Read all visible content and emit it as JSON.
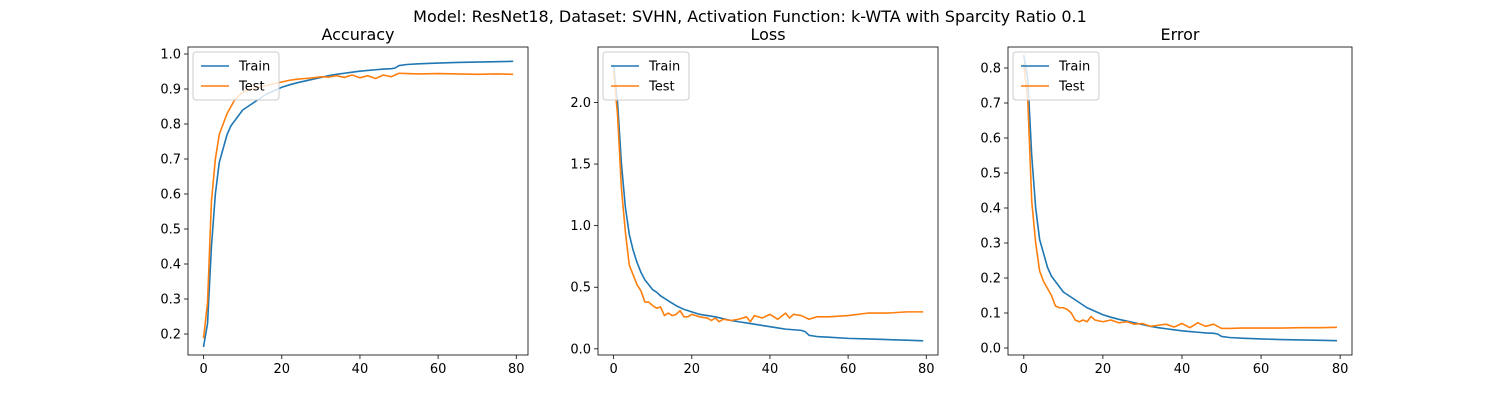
{
  "figure": {
    "suptitle": "Model: ResNet18, Dataset: SVHN, Activation Function: k-WTA with Sparcity Ratio 0.1"
  },
  "colors": {
    "train": "#1f77b4",
    "test": "#ff7f0e"
  },
  "chart_data": [
    {
      "type": "line",
      "title": "Accuracy",
      "xlabel": "",
      "ylabel": "",
      "xlim": [
        -4,
        83
      ],
      "ylim": [
        0.14,
        1.02
      ],
      "xticks": [
        0,
        20,
        40,
        60,
        80
      ],
      "yticks": [
        0.2,
        0.3,
        0.4,
        0.5,
        0.6,
        0.7,
        0.8,
        0.9,
        1.0
      ],
      "ytick_labels": [
        "0.2",
        "0.3",
        "0.4",
        "0.5",
        "0.6",
        "0.7",
        "0.8",
        "0.9",
        "1.0"
      ],
      "legend": "upper left",
      "series": [
        {
          "name": "Train",
          "color": "#1f77b4",
          "x": [
            0,
            1,
            2,
            3,
            4,
            5,
            6,
            7,
            8,
            9,
            10,
            12,
            14,
            16,
            18,
            20,
            22,
            24,
            26,
            28,
            30,
            32,
            34,
            36,
            38,
            40,
            42,
            44,
            46,
            48,
            49,
            50,
            52,
            55,
            60,
            65,
            70,
            75,
            79
          ],
          "y": [
            0.165,
            0.23,
            0.45,
            0.6,
            0.69,
            0.73,
            0.77,
            0.795,
            0.81,
            0.825,
            0.84,
            0.855,
            0.87,
            0.885,
            0.895,
            0.905,
            0.912,
            0.918,
            0.923,
            0.928,
            0.933,
            0.938,
            0.942,
            0.945,
            0.948,
            0.951,
            0.953,
            0.955,
            0.957,
            0.958,
            0.96,
            0.967,
            0.97,
            0.972,
            0.974,
            0.976,
            0.977,
            0.978,
            0.979
          ]
        },
        {
          "name": "Test",
          "color": "#ff7f0e",
          "x": [
            0,
            1,
            2,
            3,
            4,
            5,
            6,
            7,
            8,
            9,
            10,
            12,
            14,
            16,
            18,
            20,
            22,
            24,
            26,
            28,
            30,
            32,
            34,
            36,
            38,
            40,
            42,
            44,
            46,
            48,
            50,
            52,
            55,
            60,
            65,
            70,
            75,
            79
          ],
          "y": [
            0.19,
            0.29,
            0.58,
            0.7,
            0.77,
            0.8,
            0.83,
            0.85,
            0.87,
            0.88,
            0.89,
            0.9,
            0.905,
            0.91,
            0.915,
            0.92,
            0.925,
            0.928,
            0.93,
            0.932,
            0.935,
            0.934,
            0.938,
            0.933,
            0.94,
            0.932,
            0.938,
            0.93,
            0.94,
            0.935,
            0.945,
            0.944,
            0.943,
            0.944,
            0.943,
            0.942,
            0.943,
            0.942
          ]
        }
      ]
    },
    {
      "type": "line",
      "title": "Loss",
      "xlabel": "",
      "ylabel": "",
      "xlim": [
        -4,
        83
      ],
      "ylim": [
        -0.05,
        2.45
      ],
      "xticks": [
        0,
        20,
        40,
        60,
        80
      ],
      "yticks": [
        0.0,
        0.5,
        1.0,
        1.5,
        2.0
      ],
      "ytick_labels": [
        "0.0",
        "0.5",
        "1.0",
        "1.5",
        "2.0"
      ],
      "legend": "upper left",
      "series": [
        {
          "name": "Train",
          "color": "#1f77b4",
          "x": [
            0,
            1,
            2,
            3,
            4,
            5,
            6,
            7,
            8,
            9,
            10,
            11,
            12,
            14,
            16,
            18,
            20,
            22,
            24,
            26,
            28,
            30,
            32,
            34,
            36,
            38,
            40,
            42,
            44,
            46,
            48,
            49,
            50,
            52,
            55,
            60,
            65,
            70,
            75,
            79
          ],
          "y": [
            2.3,
            2.0,
            1.5,
            1.15,
            0.93,
            0.8,
            0.7,
            0.62,
            0.56,
            0.52,
            0.48,
            0.46,
            0.43,
            0.39,
            0.35,
            0.32,
            0.3,
            0.28,
            0.27,
            0.26,
            0.245,
            0.23,
            0.22,
            0.21,
            0.2,
            0.19,
            0.18,
            0.17,
            0.16,
            0.155,
            0.15,
            0.14,
            0.11,
            0.1,
            0.095,
            0.085,
            0.08,
            0.075,
            0.07,
            0.065
          ]
        },
        {
          "name": "Test",
          "color": "#ff7f0e",
          "x": [
            0,
            1,
            2,
            3,
            4,
            5,
            6,
            7,
            8,
            9,
            10,
            11,
            12,
            13,
            14,
            15,
            16,
            17,
            18,
            19,
            20,
            22,
            24,
            25,
            26,
            27,
            28,
            30,
            32,
            34,
            35,
            36,
            38,
            40,
            42,
            44,
            45,
            46,
            48,
            50,
            52,
            55,
            60,
            65,
            70,
            75,
            79
          ],
          "y": [
            2.25,
            1.9,
            1.3,
            0.95,
            0.68,
            0.6,
            0.52,
            0.47,
            0.38,
            0.38,
            0.35,
            0.33,
            0.34,
            0.27,
            0.29,
            0.27,
            0.28,
            0.31,
            0.26,
            0.26,
            0.28,
            0.26,
            0.25,
            0.23,
            0.25,
            0.22,
            0.24,
            0.23,
            0.24,
            0.26,
            0.22,
            0.27,
            0.25,
            0.28,
            0.24,
            0.29,
            0.25,
            0.28,
            0.27,
            0.24,
            0.26,
            0.26,
            0.27,
            0.29,
            0.29,
            0.3,
            0.3
          ]
        }
      ]
    },
    {
      "type": "line",
      "title": "Error",
      "xlabel": "",
      "ylabel": "",
      "xlim": [
        -4,
        83
      ],
      "ylim": [
        -0.02,
        0.86
      ],
      "xticks": [
        0,
        20,
        40,
        60,
        80
      ],
      "yticks": [
        0.0,
        0.1,
        0.2,
        0.3,
        0.4,
        0.5,
        0.6,
        0.7,
        0.8
      ],
      "ytick_labels": [
        "0.0",
        "0.1",
        "0.2",
        "0.3",
        "0.4",
        "0.5",
        "0.6",
        "0.7",
        "0.8"
      ],
      "legend": "upper left",
      "series": [
        {
          "name": "Train",
          "color": "#1f77b4",
          "x": [
            0,
            1,
            2,
            3,
            4,
            5,
            6,
            7,
            8,
            9,
            10,
            12,
            14,
            16,
            18,
            20,
            22,
            24,
            26,
            28,
            30,
            32,
            34,
            36,
            38,
            40,
            42,
            44,
            46,
            48,
            49,
            50,
            52,
            55,
            60,
            65,
            70,
            75,
            79
          ],
          "y": [
            0.835,
            0.77,
            0.55,
            0.4,
            0.31,
            0.27,
            0.23,
            0.205,
            0.19,
            0.175,
            0.16,
            0.145,
            0.13,
            0.115,
            0.105,
            0.095,
            0.088,
            0.082,
            0.077,
            0.072,
            0.067,
            0.062,
            0.058,
            0.055,
            0.052,
            0.049,
            0.047,
            0.045,
            0.043,
            0.042,
            0.04,
            0.033,
            0.03,
            0.028,
            0.026,
            0.024,
            0.023,
            0.022,
            0.021
          ]
        },
        {
          "name": "Test",
          "color": "#ff7f0e",
          "x": [
            0,
            1,
            2,
            3,
            4,
            5,
            6,
            7,
            8,
            9,
            10,
            11,
            12,
            13,
            14,
            15,
            16,
            17,
            18,
            20,
            22,
            24,
            26,
            28,
            30,
            32,
            34,
            36,
            38,
            40,
            42,
            44,
            46,
            48,
            50,
            52,
            55,
            60,
            65,
            70,
            75,
            79
          ],
          "y": [
            0.81,
            0.71,
            0.42,
            0.3,
            0.22,
            0.19,
            0.17,
            0.15,
            0.12,
            0.115,
            0.115,
            0.11,
            0.1,
            0.08,
            0.075,
            0.08,
            0.075,
            0.09,
            0.08,
            0.075,
            0.08,
            0.072,
            0.075,
            0.068,
            0.07,
            0.062,
            0.065,
            0.068,
            0.06,
            0.07,
            0.058,
            0.072,
            0.062,
            0.068,
            0.056,
            0.056,
            0.057,
            0.057,
            0.057,
            0.058,
            0.058,
            0.059
          ]
        }
      ]
    }
  ]
}
